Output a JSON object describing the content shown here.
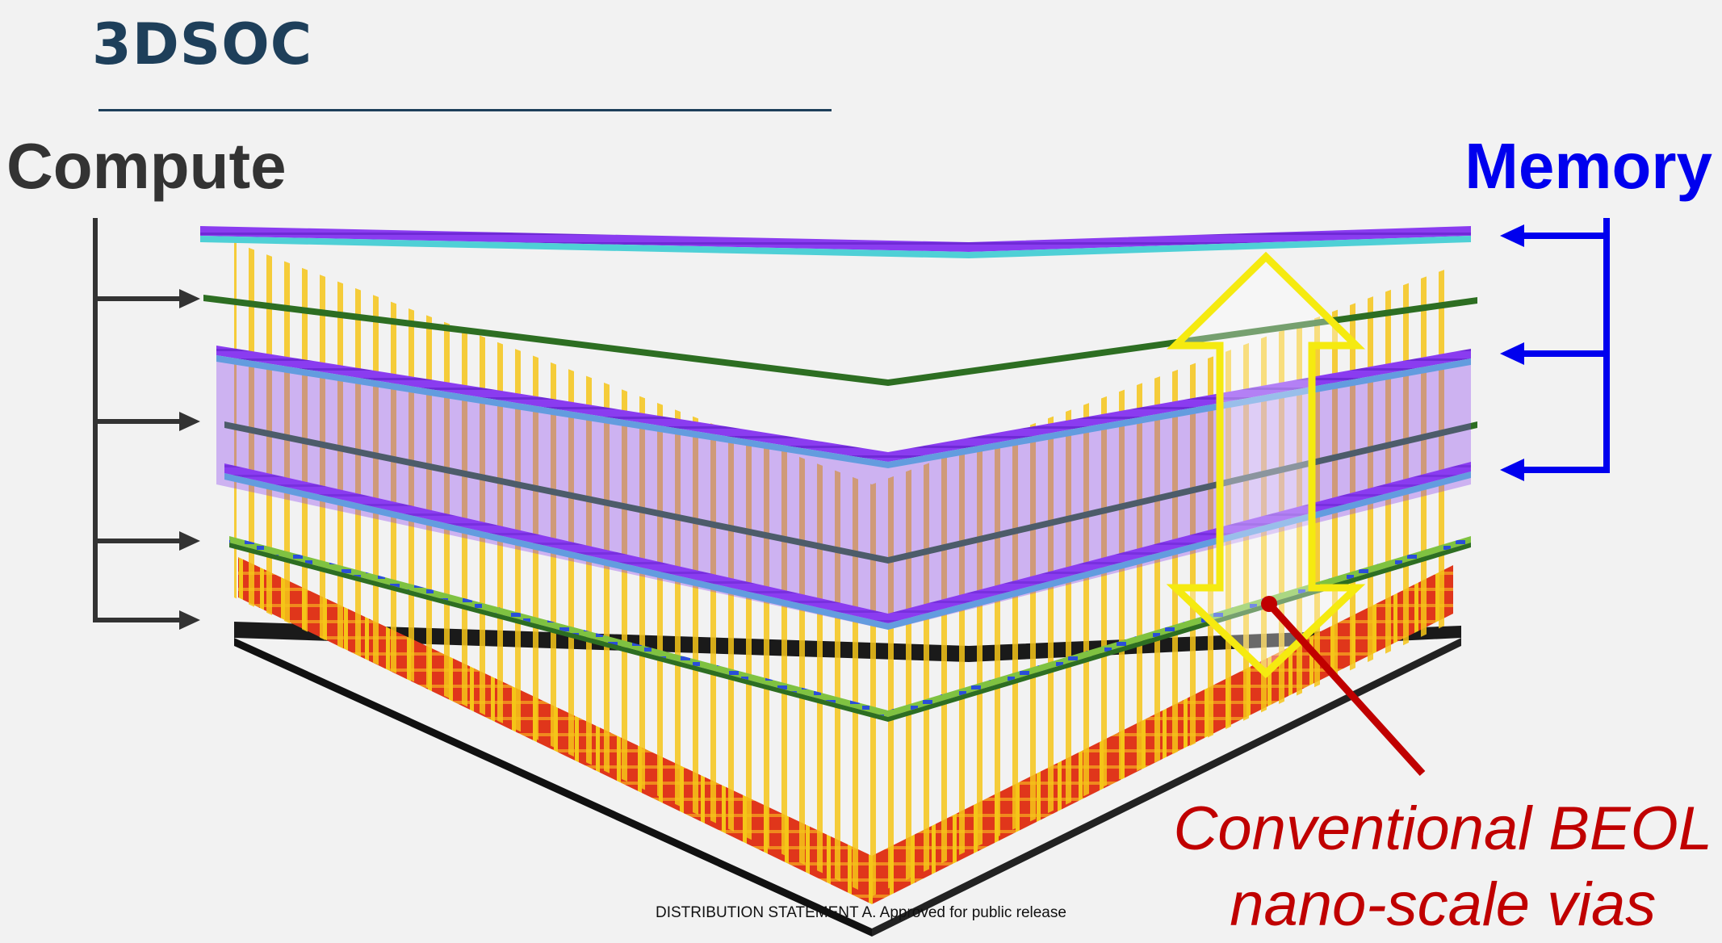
{
  "title": "3DSOC",
  "labels": {
    "compute": "Compute",
    "memory": "Memory",
    "beol_line1": "Conventional BEOL",
    "beol_line2": "nano-scale vias"
  },
  "footer": "DISTRIBUTION STATEMENT A. Approved for public release",
  "colors": {
    "title": "#1e3f5a",
    "compute": "#333333",
    "memory": "#0000ee",
    "callout": "#c00000",
    "via": "#f5c518",
    "memory_layer": "#8a3cf0",
    "logic_layer": "#7fc241",
    "substrate": "#1a1a1a"
  },
  "icons": [
    "compute-bracket-arrow-icon",
    "memory-bracket-arrow-icon",
    "double-headed-arrow-icon"
  ]
}
